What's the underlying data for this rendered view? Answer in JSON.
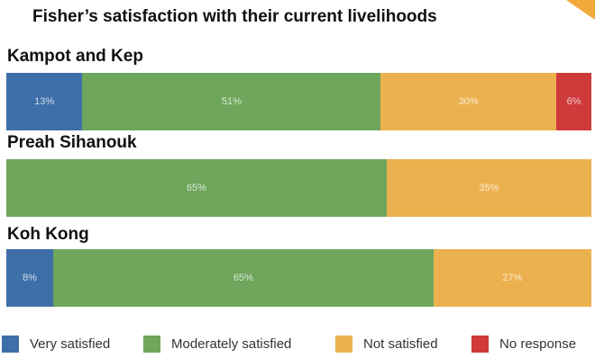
{
  "chart_data": {
    "type": "bar",
    "orientation": "horizontal",
    "stacked": true,
    "title": "Fisher’s satisfaction with their current livelihoods",
    "categories": [
      "Kampot and Kep",
      "Preah Sihanouk",
      "Koh Kong"
    ],
    "series": [
      {
        "name": "Very satisfied",
        "color": "#3f6fa8",
        "values": [
          13,
          0,
          8
        ],
        "labels": [
          "13%",
          "",
          "8%"
        ]
      },
      {
        "name": "Moderately satisfied",
        "color": "#6ea65c",
        "values": [
          51,
          65,
          65
        ],
        "labels": [
          "51%",
          "65%",
          "65%"
        ]
      },
      {
        "name": "Not satisfied",
        "color": "#ecb14f",
        "values": [
          30,
          35,
          27
        ],
        "labels": [
          "30%",
          "35%",
          "27%"
        ]
      },
      {
        "name": "No response",
        "color": "#cf3b3b",
        "values": [
          6,
          0,
          0
        ],
        "labels": [
          "6%",
          "",
          ""
        ]
      }
    ],
    "xlim": [
      0,
      100
    ],
    "grid": false,
    "legend_position": "bottom"
  },
  "accent_color": "#f2a93b"
}
